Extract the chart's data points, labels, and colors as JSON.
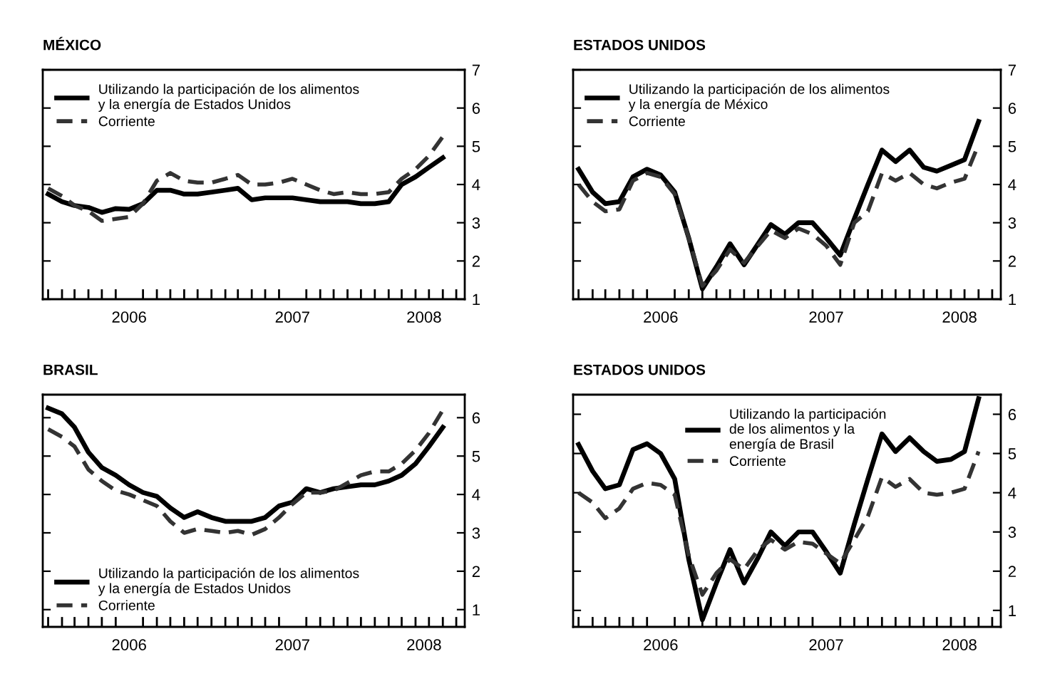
{
  "chart_data": [
    {
      "type": "line",
      "title": "MÉXICO",
      "x": [
        "2006-01",
        "2006-02",
        "2006-03",
        "2006-04",
        "2006-05",
        "2006-06",
        "2006-07",
        "2006-08",
        "2006-09",
        "2006-10",
        "2006-11",
        "2006-12",
        "2007-01",
        "2007-02",
        "2007-03",
        "2007-04",
        "2007-05",
        "2007-06",
        "2007-07",
        "2007-08",
        "2007-09",
        "2007-10",
        "2007-11",
        "2007-12",
        "2008-01",
        "2008-02",
        "2008-03",
        "2008-04",
        "2008-05",
        "2008-06"
      ],
      "series": [
        {
          "name": "Utilizando la participación de los alimentos\ny la energía de Estados Unidos",
          "color": "#000000",
          "line_style": "solid",
          "values": [
            3.75,
            3.55,
            3.45,
            3.4,
            3.27,
            3.37,
            3.35,
            3.5,
            3.85,
            3.85,
            3.75,
            3.75,
            3.8,
            3.85,
            3.9,
            3.6,
            3.65,
            3.65,
            3.65,
            3.6,
            3.55,
            3.55,
            3.55,
            3.5,
            3.5,
            3.55,
            4.0,
            4.2,
            4.45,
            4.7
          ]
        },
        {
          "name": "Corriente",
          "color": "#333333",
          "line_style": "dashed",
          "values": [
            3.9,
            3.7,
            3.45,
            3.3,
            3.05,
            3.1,
            3.15,
            3.5,
            4.1,
            4.3,
            4.1,
            4.05,
            4.05,
            4.15,
            4.25,
            4.0,
            4.0,
            4.05,
            4.15,
            4.0,
            3.85,
            3.75,
            3.8,
            3.75,
            3.75,
            3.8,
            4.15,
            4.4,
            4.75,
            5.25
          ]
        }
      ],
      "xlim": [
        "2005-12-20",
        "2008-07-20"
      ],
      "xticks": [
        {
          "value": "2006-07-01",
          "label": "2006"
        },
        {
          "value": "2007-07-01",
          "label": "2007"
        },
        {
          "value": "2008-04-20",
          "label": "2008"
        }
      ],
      "ylim": [
        1,
        7
      ],
      "yticks": [
        1,
        2,
        3,
        4,
        5,
        6,
        7
      ],
      "legend": "top left"
    },
    {
      "type": "line",
      "title": "ESTADOS UNIDOS",
      "x": [
        "2006-01",
        "2006-02",
        "2006-03",
        "2006-04",
        "2006-05",
        "2006-06",
        "2006-07",
        "2006-08",
        "2006-09",
        "2006-10",
        "2006-11",
        "2006-12",
        "2007-01",
        "2007-02",
        "2007-03",
        "2007-04",
        "2007-05",
        "2007-06",
        "2007-07",
        "2007-08",
        "2007-09",
        "2007-10",
        "2007-11",
        "2007-12",
        "2008-01",
        "2008-02",
        "2008-03",
        "2008-04",
        "2008-05",
        "2008-06"
      ],
      "series": [
        {
          "name": "Utilizando la participación de los alimentos\ny la energía de México",
          "color": "#000000",
          "line_style": "solid",
          "values": [
            4.4,
            3.8,
            3.5,
            3.55,
            4.2,
            4.4,
            4.25,
            3.8,
            2.6,
            1.27,
            1.85,
            2.45,
            1.9,
            2.45,
            2.95,
            2.7,
            3.0,
            3.0,
            2.6,
            2.15,
            3.1,
            4.0,
            4.9,
            4.6,
            4.9,
            4.45,
            4.35,
            4.5,
            4.65,
            5.65
          ]
        },
        {
          "name": "Corriente",
          "color": "#333333",
          "line_style": "dashed",
          "values": [
            4.0,
            3.55,
            3.3,
            3.35,
            4.1,
            4.3,
            4.2,
            3.75,
            2.6,
            1.35,
            1.75,
            2.3,
            1.95,
            2.4,
            2.8,
            2.6,
            2.85,
            2.7,
            2.4,
            1.9,
            3.0,
            3.3,
            4.3,
            4.1,
            4.3,
            4.0,
            3.9,
            4.05,
            4.15,
            5.05
          ]
        }
      ],
      "xlim": [
        "2005-12-20",
        "2008-07-20"
      ],
      "xticks": [
        {
          "value": "2006-07-01",
          "label": "2006"
        },
        {
          "value": "2007-07-01",
          "label": "2007"
        },
        {
          "value": "2008-04-20",
          "label": "2008"
        }
      ],
      "ylim": [
        1,
        7
      ],
      "yticks": [
        1,
        2,
        3,
        4,
        5,
        6,
        7
      ],
      "legend": "top left"
    },
    {
      "type": "line",
      "title": "BRASIL",
      "x": [
        "2006-01",
        "2006-02",
        "2006-03",
        "2006-04",
        "2006-05",
        "2006-06",
        "2006-07",
        "2006-08",
        "2006-09",
        "2006-10",
        "2006-11",
        "2006-12",
        "2007-01",
        "2007-02",
        "2007-03",
        "2007-04",
        "2007-05",
        "2007-06",
        "2007-07",
        "2007-08",
        "2007-09",
        "2007-10",
        "2007-11",
        "2007-12",
        "2008-01",
        "2008-02",
        "2008-03",
        "2008-04",
        "2008-05",
        "2008-06"
      ],
      "series": [
        {
          "name": "Utilizando la participación de los alimentos\ny la energía de Estados Unidos",
          "color": "#000000",
          "line_style": "solid",
          "values": [
            6.25,
            6.1,
            5.75,
            5.1,
            4.7,
            4.5,
            4.25,
            4.05,
            3.95,
            3.65,
            3.4,
            3.55,
            3.4,
            3.3,
            3.3,
            3.3,
            3.4,
            3.7,
            3.8,
            4.15,
            4.05,
            4.15,
            4.2,
            4.25,
            4.25,
            4.35,
            4.5,
            4.8,
            5.25,
            5.75
          ]
        },
        {
          "name": "Corriente",
          "color": "#333333",
          "line_style": "dashed",
          "values": [
            5.7,
            5.5,
            5.25,
            4.65,
            4.35,
            4.1,
            4.0,
            3.85,
            3.7,
            3.3,
            3.0,
            3.1,
            3.05,
            3.0,
            3.05,
            2.95,
            3.1,
            3.4,
            3.75,
            4.05,
            4.05,
            4.1,
            4.3,
            4.5,
            4.6,
            4.6,
            4.8,
            5.15,
            5.6,
            6.2
          ]
        }
      ],
      "xlim": [
        "2005-12-20",
        "2008-07-20"
      ],
      "xticks": [
        {
          "value": "2006-07-01",
          "label": "2006"
        },
        {
          "value": "2007-07-01",
          "label": "2007"
        },
        {
          "value": "2008-04-20",
          "label": "2008"
        }
      ],
      "ylim": [
        0.55,
        6.6
      ],
      "yticks": [
        1,
        2,
        3,
        4,
        5,
        6
      ],
      "legend": "bottom left"
    },
    {
      "type": "line",
      "title": "ESTADOS UNIDOS",
      "x": [
        "2006-01",
        "2006-02",
        "2006-03",
        "2006-04",
        "2006-05",
        "2006-06",
        "2006-07",
        "2006-08",
        "2006-09",
        "2006-10",
        "2006-11",
        "2006-12",
        "2007-01",
        "2007-02",
        "2007-03",
        "2007-04",
        "2007-05",
        "2007-06",
        "2007-07",
        "2007-08",
        "2007-09",
        "2007-10",
        "2007-11",
        "2007-12",
        "2008-01",
        "2008-02",
        "2008-03",
        "2008-04",
        "2008-05",
        "2008-06"
      ],
      "series": [
        {
          "name": "Utilizando la participación\nde los alimentos y la\nenergía de Brasil",
          "color": "#000000",
          "line_style": "solid",
          "values": [
            5.23,
            4.55,
            4.1,
            4.2,
            5.1,
            5.25,
            5.0,
            4.35,
            2.3,
            0.76,
            1.7,
            2.55,
            1.7,
            2.35,
            3.0,
            2.65,
            3.0,
            3.0,
            2.5,
            1.95,
            3.2,
            4.35,
            5.5,
            5.05,
            5.4,
            5.05,
            4.8,
            4.85,
            5.05,
            6.4
          ]
        },
        {
          "name": "Corriente",
          "color": "#333333",
          "line_style": "dashed",
          "values": [
            4.0,
            3.75,
            3.35,
            3.6,
            4.1,
            4.25,
            4.2,
            3.95,
            2.4,
            1.4,
            1.95,
            2.3,
            2.05,
            2.55,
            2.8,
            2.55,
            2.75,
            2.7,
            2.45,
            2.2,
            2.8,
            3.4,
            4.4,
            4.15,
            4.35,
            4.0,
            3.95,
            4.0,
            4.1,
            5.05
          ]
        }
      ],
      "xlim": [
        "2005-12-20",
        "2008-07-20"
      ],
      "xticks": [
        {
          "value": "2006-07-01",
          "label": "2006"
        },
        {
          "value": "2007-07-01",
          "label": "2007"
        },
        {
          "value": "2008-04-20",
          "label": "2008"
        }
      ],
      "ylim": [
        0.58,
        6.5
      ],
      "yticks": [
        1,
        2,
        3,
        4,
        5,
        6
      ],
      "legend": "top"
    }
  ]
}
